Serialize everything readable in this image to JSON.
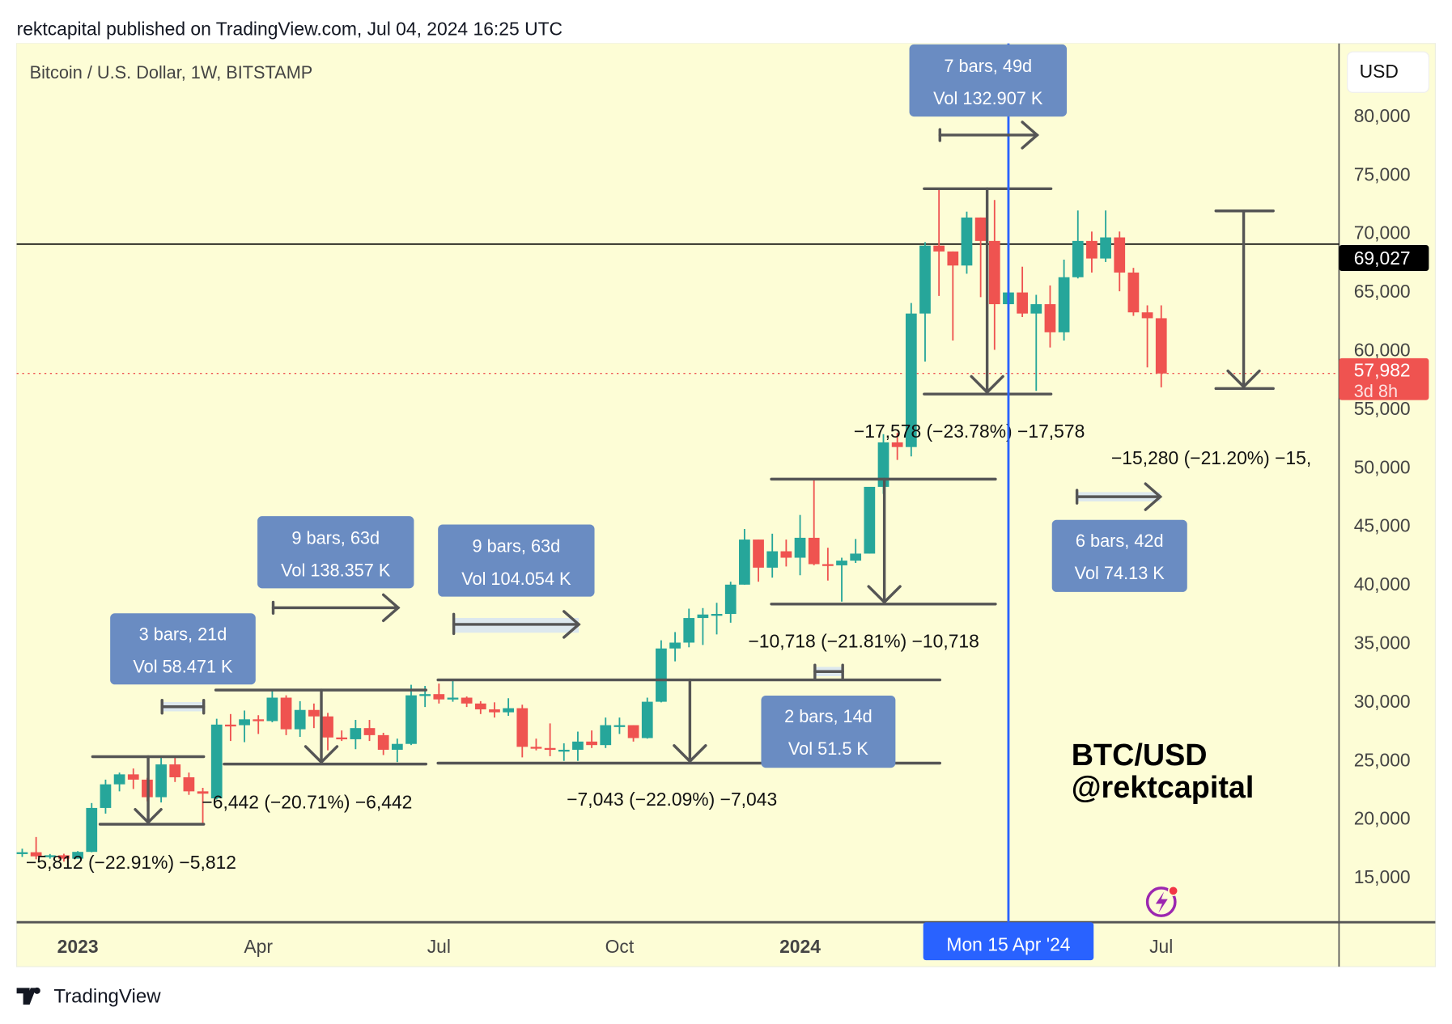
{
  "header": "rektcapital published on TradingView.com, Jul 04, 2024 16:25 UTC",
  "footer_logo": "TradingView",
  "chart_data": {
    "type": "candlestick",
    "title": "Bitcoin / U.S. Dollar, 1W, BITSTAMP",
    "currency_button": "USD",
    "interval": "1W",
    "first_candle_week": "2022-12-05",
    "ylim": [
      10000,
      84000
    ],
    "y_ticks": [
      "80,000",
      "75,000",
      "70,000",
      "65,000",
      "60,000",
      "55,000",
      "50,000",
      "45,000",
      "40,000",
      "35,000",
      "30,000",
      "25,000",
      "20,000",
      "15,000"
    ],
    "y_tick_values": [
      80000,
      75000,
      70000,
      65000,
      60000,
      55000,
      50000,
      45000,
      40000,
      35000,
      30000,
      25000,
      20000,
      15000
    ],
    "x_ticks": [
      {
        "label": "2023",
        "week": 4,
        "bold": true
      },
      {
        "label": "Apr",
        "week": 17,
        "bold": false
      },
      {
        "label": "Jul",
        "week": 30,
        "bold": false
      },
      {
        "label": "Oct",
        "week": 43,
        "bold": false
      },
      {
        "label": "2024",
        "week": 56,
        "bold": true
      },
      {
        "label": "Jul",
        "week": 82,
        "bold": false
      }
    ],
    "crosshair": {
      "label": "Mon 15 Apr '24",
      "week": 71
    },
    "horizontal_line": {
      "value": 69027,
      "label": "69,027"
    },
    "last_price": {
      "value": 57982,
      "label": "57,982",
      "countdown": "3d 8h"
    },
    "colors": {
      "up": "#26a69a",
      "down": "#ef5350",
      "background": "#fdfdd6",
      "crosshair": "#2962ff",
      "box": "#6a8cc2"
    },
    "candles_ohlc": [
      [
        17100,
        17400,
        16700,
        17100
      ],
      [
        17100,
        18400,
        16500,
        16750
      ],
      [
        16750,
        16950,
        16550,
        16840
      ],
      [
        16840,
        16970,
        16300,
        16550
      ],
      [
        16550,
        17200,
        16550,
        17130
      ],
      [
        17130,
        21300,
        17100,
        20880
      ],
      [
        20880,
        23300,
        20400,
        22900
      ],
      [
        22900,
        23900,
        22300,
        23750
      ],
      [
        23750,
        24250,
        22500,
        23300
      ],
      [
        23300,
        23450,
        21450,
        21800
      ],
      [
        21800,
        25200,
        21350,
        24600
      ],
      [
        24600,
        25250,
        23100,
        23500
      ],
      [
        23500,
        23900,
        22000,
        22300
      ],
      [
        22300,
        22600,
        19600,
        22100
      ],
      [
        21700,
        28500,
        21600,
        28000
      ],
      [
        28000,
        28900,
        26600,
        27950
      ],
      [
        27950,
        29200,
        26500,
        28450
      ],
      [
        28450,
        28800,
        27200,
        28300
      ],
      [
        28300,
        31000,
        28200,
        30300
      ],
      [
        30300,
        30500,
        27100,
        27600
      ],
      [
        27600,
        30000,
        26950,
        29250
      ],
      [
        29250,
        29800,
        27700,
        28700
      ],
      [
        28700,
        29000,
        25800,
        26900
      ],
      [
        26900,
        27500,
        26600,
        26750
      ],
      [
        26750,
        28400,
        25900,
        27700
      ],
      [
        27700,
        28400,
        26600,
        27100
      ],
      [
        27100,
        27300,
        25400,
        25850
      ],
      [
        25850,
        26800,
        24800,
        26350
      ],
      [
        26350,
        31400,
        26250,
        30500
      ],
      [
        30500,
        31300,
        29500,
        30600
      ],
      [
        30600,
        31500,
        29800,
        30150
      ],
      [
        30150,
        31800,
        29950,
        30300
      ],
      [
        30300,
        30400,
        29500,
        29800
      ],
      [
        29800,
        30000,
        28900,
        29300
      ],
      [
        29300,
        29900,
        28600,
        29050
      ],
      [
        29050,
        30250,
        28750,
        29400
      ],
      [
        29400,
        29700,
        25200,
        26100
      ],
      [
        26100,
        26800,
        25800,
        26000
      ],
      [
        26000,
        28100,
        25300,
        25850
      ],
      [
        25850,
        26400,
        24900,
        25850
      ],
      [
        25850,
        27400,
        24900,
        26550
      ],
      [
        26550,
        27500,
        26000,
        26250
      ],
      [
        26250,
        28600,
        26000,
        27950
      ],
      [
        27950,
        28600,
        27200,
        27950
      ],
      [
        27950,
        27950,
        26550,
        26850
      ],
      [
        26850,
        30300,
        26800,
        29950
      ],
      [
        29950,
        35200,
        29900,
        34500
      ],
      [
        34500,
        35900,
        33400,
        35000
      ],
      [
        35000,
        37900,
        34600,
        37100
      ],
      [
        37100,
        37950,
        34800,
        37400
      ],
      [
        37400,
        38400,
        35700,
        37450
      ],
      [
        37450,
        40200,
        36700,
        39950
      ],
      [
        39950,
        44700,
        39950,
        43800
      ],
      [
        43800,
        43800,
        40200,
        41400
      ],
      [
        41400,
        44300,
        40550,
        42800
      ],
      [
        42800,
        43800,
        41500,
        42250
      ],
      [
        42250,
        45900,
        40750,
        43950
      ],
      [
        43950,
        49000,
        41600,
        41700
      ],
      [
        41700,
        43100,
        40300,
        41600
      ],
      [
        41600,
        42250,
        38500,
        42000
      ],
      [
        42000,
        43850,
        41800,
        42600
      ],
      [
        42600,
        48200,
        42600,
        48300
      ],
      [
        48300,
        52800,
        47700,
        52100
      ],
      [
        52100,
        52900,
        50600,
        51700
      ],
      [
        51700,
        64000,
        50900,
        63100
      ],
      [
        63100,
        69200,
        59000,
        68900
      ],
      [
        68900,
        73800,
        64600,
        68400
      ],
      [
        68400,
        68400,
        60800,
        67200
      ],
      [
        67200,
        71800,
        66500,
        71300
      ],
      [
        71300,
        71300,
        64500,
        69300
      ],
      [
        69300,
        72800,
        60000,
        63900
      ],
      [
        63900,
        67200,
        59600,
        64900
      ],
      [
        64900,
        67100,
        62800,
        63100
      ],
      [
        63100,
        64700,
        56500,
        63900
      ],
      [
        63900,
        65500,
        60200,
        61500
      ],
      [
        61500,
        67700,
        60800,
        66200
      ],
      [
        66200,
        71900,
        66100,
        69300
      ],
      [
        69300,
        70100,
        66600,
        67800
      ],
      [
        67800,
        71900,
        67500,
        69600
      ],
      [
        69600,
        70100,
        65000,
        66600
      ],
      [
        66600,
        67000,
        62900,
        63200
      ],
      [
        63200,
        63800,
        58500,
        62700
      ],
      [
        62700,
        63800,
        56800,
        57982
      ]
    ],
    "annotations": {
      "price_ranges": [
        "−5,812 (−22.91%) −5,812",
        "−6,442 (−20.71%) −6,442",
        "−7,043 (−22.09%) −7,043",
        "−10,718 (−21.81%) −10,718",
        "−17,578 (−23.78%) −17,578",
        "−15,280 (−21.20%) −15,"
      ],
      "date_ranges": [
        {
          "bars": "3 bars, 21d",
          "vol": "Vol 58.471 K"
        },
        {
          "bars": "9 bars, 63d",
          "vol": "Vol 138.357 K"
        },
        {
          "bars": "9 bars, 63d",
          "vol": "Vol 104.054 K"
        },
        {
          "bars": "2 bars, 14d",
          "vol": "Vol 51.5 K"
        },
        {
          "bars": "7 bars, 49d",
          "vol": "Vol 132.907 K"
        },
        {
          "bars": "6 bars, 42d",
          "vol": "Vol 74.13 K"
        }
      ],
      "watermark_line1": "BTC/USD",
      "watermark_line2": "@rektcapital"
    }
  }
}
